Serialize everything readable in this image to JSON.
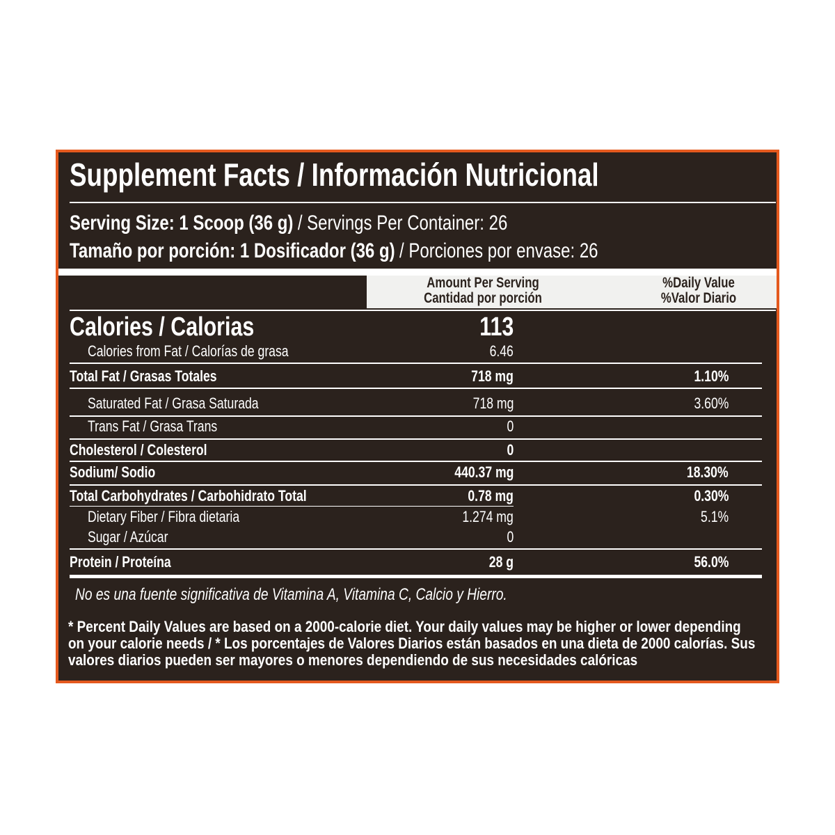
{
  "title": "Supplement Facts / Información Nutricional",
  "serving": [
    {
      "bold": "Serving Size: 1 Scoop (36 g)",
      "text": "/ Servings Per Container: 26"
    },
    {
      "bold": "Tamaño por porción: 1 Dosificador (36 g)",
      "text": "/ Porciones por envase: 26"
    }
  ],
  "header": {
    "amount": [
      "Amount Per Serving",
      "Cantidad por porción"
    ],
    "daily": [
      "%Daily Value",
      "%Valor Diario"
    ]
  },
  "rows": [
    {
      "label": "Calories / Calorias",
      "amount": 113
    },
    {
      "label": "Calories from Fat / Calorías de grasa",
      "amount": 6.46
    },
    {
      "label": "Total Fat / Grasas Totales",
      "amount": "718 mg",
      "daily": "1.10%"
    },
    {
      "label": "Saturated Fat / Grasa Saturada",
      "amount": "718 mg",
      "daily": "3.60%"
    },
    {
      "label": "Trans Fat / Grasa Trans",
      "amount": 0
    },
    {
      "label": "Cholesterol / Colesterol",
      "amount": 0
    },
    {
      "label": "Sodium/ Sodio",
      "amount": "440.37 mg",
      "daily": "18.30%"
    },
    {
      "label": "Total Carbohydrates / Carbohidrato Total",
      "amount": "0.78 mg",
      "daily": "0.30%"
    },
    {
      "label": "Dietary Fiber / Fibra dietaria",
      "amount": "1.274 mg",
      "daily": "5.1%"
    },
    {
      "label": "Sugar / Azúcar",
      "amount": 0
    },
    {
      "label": "Protein / Proteína",
      "amount": "28 g",
      "daily": "56.0%"
    }
  ],
  "note": "No es una fuente significativa de  Vitamina A, Vitamina C, Calcio y Hierro.",
  "footnote": [
    "* Percent Daily Values are based on a 2000-calorie diet. Your daily values may be higher or lower depending",
    "on your calorie needs / * Los porcentajes de Valores Diarios están basados en una dieta de 2000 calorías. Sus",
    "valores diarios pueden ser mayores o menores dependiendo de sus necesidades calóricas"
  ]
}
